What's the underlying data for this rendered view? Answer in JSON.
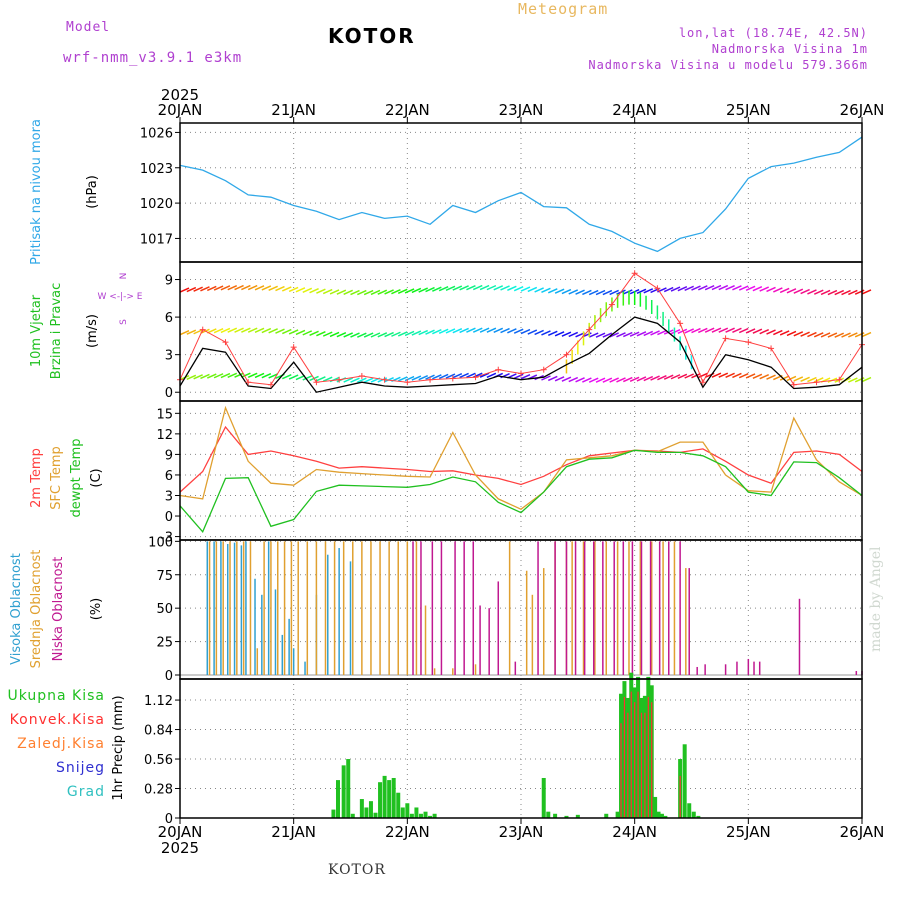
{
  "header": {
    "model_label": "Model",
    "model_name": "wrf-nmm_v3.9.1  e3km",
    "station": "KOTOR",
    "title": "Meteogram",
    "lonlat": "lon,lat (18.74E, 42.5N)",
    "altitude": "Nadmorska Visina 1m",
    "model_altitude": "Nadmorska Visina u modelu 579.366m"
  },
  "footer": {
    "station": "KOTOR",
    "credit": "made by Angel"
  },
  "colors": {
    "pressure": "#30a8e8",
    "wind_speed": "#000000",
    "gust": "#ff4040",
    "temp2m": "#ff4040",
    "sfc": "#e0a030",
    "dew": "#20c020",
    "high": "#30a0d0",
    "mid": "#e0a030",
    "low": "#c01890",
    "total": "#20c020",
    "conv": "#ff3030",
    "frz": "#ff8030",
    "snow": "#3030d0",
    "hail": "#30c0c0",
    "grid": "#888888"
  },
  "chart_data": [
    {
      "type": "line",
      "name": "pressure",
      "title": "Pritisak na nivou mora",
      "unit_label": "(hPa)",
      "ylim": [
        1015,
        1026.8
      ],
      "yticks": [
        "1017",
        "1020",
        "1023",
        "1026"
      ],
      "ytick_values": [
        1017,
        1020,
        1023,
        1026
      ],
      "x_days": [
        0,
        0.2,
        0.4,
        0.6,
        0.8,
        1.0,
        1.2,
        1.4,
        1.6,
        1.8,
        2.0,
        2.2,
        2.4,
        2.6,
        2.8,
        3.0,
        3.2,
        3.4,
        3.6,
        3.8,
        4.0,
        4.2,
        4.4,
        4.6,
        4.8,
        5.0,
        5.2,
        5.4,
        5.6,
        5.8,
        6.0
      ],
      "series": [
        {
          "name": "pressure",
          "values": [
            1023.2,
            1022.8,
            1021.9,
            1020.7,
            1020.5,
            1019.8,
            1019.3,
            1018.6,
            1019.2,
            1018.7,
            1018.9,
            1018.2,
            1019.8,
            1019.2,
            1020.2,
            1020.9,
            1019.7,
            1019.6,
            1018.2,
            1017.6,
            1016.6,
            1015.9,
            1017.0,
            1017.5,
            1019.5,
            1022.1,
            1023.1,
            1023.4,
            1023.9,
            1024.3,
            1025.6
          ]
        }
      ]
    },
    {
      "type": "line",
      "name": "wind",
      "title_1": "10m Vjetar",
      "title_2": "Brzina i Pravac",
      "unit_label": "(m/s)",
      "compass": {
        "n": "N",
        "s": "S",
        "w": "W",
        "e": "E",
        "row": "W  <-|->  E"
      },
      "ylim": [
        -0.7,
        10.4
      ],
      "yticks": [
        "0",
        "3",
        "6",
        "9"
      ],
      "ytick_values": [
        0,
        3,
        6,
        9
      ],
      "x_days": [
        0,
        0.2,
        0.4,
        0.6,
        0.8,
        1.0,
        1.2,
        1.4,
        1.6,
        1.8,
        2.0,
        2.2,
        2.4,
        2.6,
        2.8,
        3.0,
        3.2,
        3.4,
        3.6,
        3.8,
        4.0,
        4.2,
        4.4,
        4.6,
        4.8,
        5.0,
        5.2,
        5.4,
        5.6,
        5.8,
        6.0
      ],
      "series": [
        {
          "name": "wind_speed",
          "values": [
            0.5,
            3.5,
            3.2,
            0.5,
            0.3,
            2.4,
            0.0,
            0.4,
            0.8,
            0.5,
            0.4,
            0.5,
            0.6,
            0.7,
            1.3,
            1.0,
            1.2,
            2.2,
            3.1,
            4.6,
            6.0,
            5.5,
            4.0,
            0.4,
            3.0,
            2.6,
            2.0,
            0.3,
            0.4,
            0.6,
            2.0
          ]
        },
        {
          "name": "gust",
          "values": [
            1.0,
            5.0,
            4.0,
            0.8,
            0.6,
            3.6,
            0.8,
            1.0,
            1.3,
            1.0,
            0.8,
            1.0,
            1.1,
            1.2,
            1.8,
            1.5,
            1.8,
            3.0,
            5.0,
            7.0,
            9.5,
            8.3,
            5.5,
            0.8,
            4.3,
            4.0,
            3.5,
            0.6,
            0.8,
            1.0,
            3.8
          ]
        }
      ]
    },
    {
      "type": "line",
      "name": "temperature",
      "title_1": "2m Temp",
      "title_2": "SFC Temp",
      "title_3": "dewpt Temp",
      "unit_label": "(C)",
      "ylim": [
        -3.5,
        16.8
      ],
      "yticks": [
        "-3",
        "0",
        "3",
        "6",
        "9",
        "12",
        "15"
      ],
      "ytick_values": [
        -3,
        0,
        3,
        6,
        9,
        12,
        15
      ],
      "x_days": [
        0,
        0.2,
        0.4,
        0.6,
        0.8,
        1.0,
        1.2,
        1.4,
        1.6,
        1.8,
        2.0,
        2.2,
        2.4,
        2.6,
        2.8,
        3.0,
        3.2,
        3.4,
        3.6,
        3.8,
        4.0,
        4.2,
        4.4,
        4.6,
        4.8,
        5.0,
        5.2,
        5.4,
        5.6,
        5.8,
        6.0
      ],
      "series": [
        {
          "name": "2m",
          "values": [
            3.5,
            6.5,
            13.0,
            9.0,
            9.5,
            8.8,
            8.0,
            7.0,
            7.2,
            7.0,
            6.8,
            6.5,
            6.6,
            6.0,
            5.5,
            4.6,
            5.8,
            7.5,
            8.8,
            9.2,
            9.6,
            9.5,
            9.3,
            9.8,
            8.0,
            6.0,
            4.8,
            9.3,
            9.5,
            9.0,
            6.5
          ]
        },
        {
          "name": "sfc",
          "values": [
            3.0,
            2.5,
            15.8,
            8.0,
            4.8,
            4.5,
            6.8,
            6.4,
            6.2,
            6.0,
            5.8,
            5.7,
            12.2,
            6.0,
            2.5,
            1.0,
            3.5,
            8.2,
            8.5,
            8.8,
            9.6,
            9.4,
            10.8,
            10.8,
            6.0,
            3.7,
            3.5,
            14.3,
            8.2,
            5.0,
            3.0
          ]
        },
        {
          "name": "dew",
          "values": [
            1.5,
            -2.3,
            5.5,
            5.6,
            -1.5,
            -0.5,
            3.6,
            4.5,
            4.4,
            4.3,
            4.2,
            4.6,
            5.7,
            5.0,
            2.0,
            0.5,
            3.5,
            7.2,
            8.3,
            8.5,
            9.6,
            9.3,
            9.3,
            8.8,
            7.2,
            3.5,
            3.0,
            7.9,
            7.8,
            5.6,
            3.0
          ]
        }
      ]
    },
    {
      "type": "bar",
      "name": "cloud",
      "title_1": "Visoka Oblacnost",
      "title_2": "Srednja Oblacnost",
      "title_3": "Niska Oblacnost",
      "unit_label": "(%)",
      "ylim": [
        -3,
        101
      ],
      "yticks": [
        "0",
        "25",
        "50",
        "75",
        "100"
      ],
      "ytick_values": [
        0,
        25,
        50,
        75,
        100
      ],
      "series": [
        {
          "name": "high",
          "x_days": [
            0.24,
            0.3,
            0.36,
            0.42,
            0.48,
            0.54,
            0.58,
            0.66,
            0.72,
            0.78,
            0.84,
            0.9,
            0.96,
            1.0,
            1.1,
            1.2,
            1.3,
            1.4,
            1.5
          ],
          "values": [
            100,
            100,
            100,
            98,
            99,
            97,
            100,
            72,
            60,
            100,
            64,
            30,
            42,
            20,
            10,
            60,
            90,
            95,
            85
          ]
        },
        {
          "name": "mid",
          "x_days": [
            0.26,
            0.32,
            0.38,
            0.44,
            0.5,
            0.56,
            0.62,
            0.68,
            0.74,
            0.8,
            0.86,
            0.92,
            0.98,
            1.04,
            1.12,
            1.2,
            1.28,
            1.36,
            1.44,
            1.52,
            1.6,
            1.68,
            1.76,
            1.84,
            1.92,
            2.0,
            2.08,
            2.16,
            2.24,
            2.4,
            2.6,
            2.9,
            3.05,
            3.1,
            3.2,
            3.3,
            3.4,
            3.45,
            3.55,
            3.65,
            3.75,
            3.85,
            3.95,
            4.05,
            4.15,
            4.25,
            4.35,
            4.45
          ],
          "values": [
            100,
            100,
            100,
            100,
            100,
            100,
            100,
            20,
            100,
            100,
            100,
            100,
            100,
            100,
            100,
            100,
            100,
            100,
            100,
            100,
            100,
            100,
            100,
            100,
            100,
            100,
            100,
            52,
            5,
            5,
            8,
            100,
            78,
            60,
            80,
            100,
            100,
            100,
            100,
            100,
            100,
            100,
            100,
            100,
            100,
            100,
            100,
            80
          ]
        },
        {
          "name": "low",
          "x_days": [
            2.05,
            2.12,
            2.22,
            2.3,
            2.42,
            2.5,
            2.58,
            2.64,
            2.72,
            2.8,
            2.95,
            3.15,
            3.3,
            3.4,
            3.48,
            3.56,
            3.64,
            3.72,
            3.82,
            3.9,
            3.98,
            4.06,
            4.14,
            4.22,
            4.3,
            4.4,
            4.48,
            4.55,
            4.62,
            4.8,
            4.9,
            5.0,
            5.05,
            5.1,
            5.45,
            5.95,
            6.0
          ],
          "values": [
            100,
            100,
            100,
            100,
            100,
            100,
            100,
            52,
            50,
            70,
            10,
            100,
            100,
            100,
            100,
            100,
            100,
            100,
            100,
            100,
            100,
            100,
            100,
            100,
            100,
            100,
            80,
            6,
            8,
            8,
            10,
            12,
            10,
            10,
            57,
            3,
            3
          ]
        }
      ]
    },
    {
      "type": "bar",
      "name": "precipitation",
      "legend": [
        "Ukupna Kisa",
        "Konvek.Kisa",
        "Zaledj.Kisa",
        "Snijeg",
        "Grad"
      ],
      "unit_label": "1hr Precip (mm)",
      "ylim": [
        0,
        1.32
      ],
      "yticks": [
        "0",
        "0.28",
        "0.56",
        "0.84",
        "1.12"
      ],
      "ytick_values": [
        0,
        0.28,
        0.56,
        0.84,
        1.12
      ],
      "xticks": [
        "20JAN",
        "21JAN",
        "22JAN",
        "23JAN",
        "24JAN",
        "25JAN",
        "26JAN"
      ],
      "year": "2025",
      "series": [
        {
          "name": "total",
          "x_days": [
            1.35,
            1.39,
            1.44,
            1.48,
            1.52,
            1.6,
            1.64,
            1.68,
            1.72,
            1.76,
            1.8,
            1.84,
            1.88,
            1.92,
            1.96,
            2.0,
            2.04,
            2.08,
            2.12,
            2.16,
            2.2,
            2.24,
            3.2,
            3.24,
            3.3,
            3.4,
            3.5,
            3.75,
            3.85,
            3.88,
            3.91,
            3.94,
            3.97,
            4.0,
            4.03,
            4.06,
            4.09,
            4.12,
            4.15,
            4.18,
            4.21,
            4.24,
            4.27,
            4.4,
            4.44,
            4.48,
            4.52,
            4.56
          ],
          "values": [
            0.08,
            0.36,
            0.5,
            0.56,
            0.04,
            0.18,
            0.1,
            0.16,
            0.05,
            0.34,
            0.4,
            0.36,
            0.38,
            0.24,
            0.1,
            0.14,
            0.04,
            0.1,
            0.04,
            0.06,
            0.02,
            0.04,
            0.38,
            0.06,
            0.04,
            0.02,
            0.03,
            0.04,
            0.06,
            1.18,
            1.3,
            1.14,
            1.38,
            1.24,
            1.34,
            1.14,
            1.16,
            1.34,
            1.26,
            0.2,
            0.06,
            0.04,
            0.02,
            0.56,
            0.7,
            0.14,
            0.06,
            0.02
          ]
        },
        {
          "name": "conv",
          "x_days": [
            3.88,
            3.91,
            3.94,
            3.97,
            4.0,
            4.03,
            4.06,
            4.09,
            4.12,
            4.15,
            4.4
          ],
          "values": [
            0.9,
            1.15,
            1.0,
            1.2,
            1.1,
            1.2,
            1.0,
            1.0,
            1.15,
            1.1,
            0.4
          ]
        }
      ]
    }
  ]
}
